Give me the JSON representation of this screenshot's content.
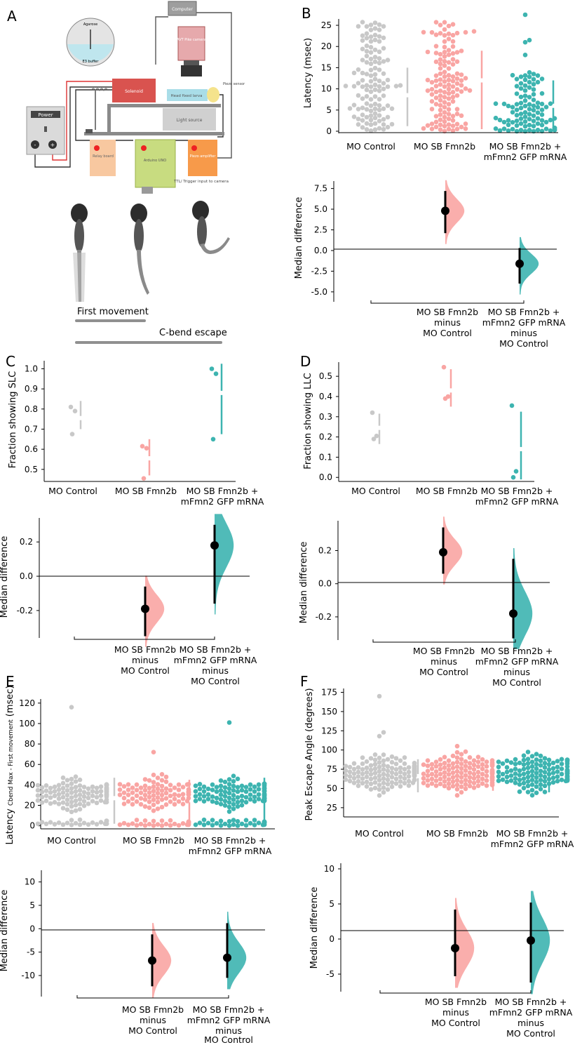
{
  "panels": {
    "A": {
      "letter": "A",
      "diagram": {
        "computer": "Computer",
        "camera": "AVT\nPike\ncamera",
        "agarose": "Agarose",
        "e3": "E3 buffer",
        "power": "Power",
        "minus": "-",
        "plus": "+",
        "solenoid": "Solenoid",
        "larva": "Head fixed larva",
        "piezo_sensor": "Piezo\nsensor",
        "light": "Light source",
        "relay": "Relay\nboard",
        "arduino": "Arduino\nUNO",
        "piezo_amp": "Piezo\namplifier",
        "ttl": "TTL/ Trigger input to camera"
      },
      "first_movement": "First movement",
      "cbend": "C-bend escape"
    },
    "B": "B",
    "C": "C",
    "D": "D",
    "E": "E",
    "F": "F"
  },
  "colors": {
    "control": "#c8c8c8",
    "fmn2b": "#f9a5a3",
    "rescue": "#3db4b0",
    "gray_bar": "#909090"
  },
  "groups": {
    "control": "MO Control",
    "fmn2b": "MO SB Fmn2b",
    "rescue_l1": "MO SB Fmn2b +",
    "rescue_l2": "mFmn2 GFP mRNA"
  },
  "diff_labels": {
    "fmn2b": [
      "MO SB Fmn2b",
      "minus",
      "MO Control"
    ],
    "rescue": [
      "MO SB Fmn2b +",
      "mFmn2 GFP mRNA",
      "minus",
      "MO Control"
    ]
  },
  "chart_data": [
    {
      "panel": "B",
      "type": "scatter",
      "ylabel": "Latency (msec)",
      "yticks": [
        0,
        5,
        10,
        15,
        20,
        25
      ],
      "ylim": [
        -0.5,
        26.5
      ],
      "groups": [
        "MO Control",
        "MO SB Fmn2b",
        "MO SB Fmn2b + mFmn2 GFP mRNA"
      ],
      "gap_bars": [
        [
          1.2,
          8.5,
          15
        ],
        [
          0.5,
          12,
          19
        ],
        [
          0.5,
          6,
          12
        ]
      ],
      "diff": {
        "ylabel": "Median difference",
        "yticks": [
          -5.0,
          -2.5,
          0.0,
          2.5,
          5.0,
          7.5
        ],
        "ylim": [
          -6.2,
          8.4
        ],
        "estimates": [
          {
            "label": "MO SB Fmn2b minus MO Control",
            "median": 4.8,
            "ci": [
              2.1,
              7.2
            ]
          },
          {
            "label": "MO SB Fmn2b + mFmn2 GFP mRNA minus MO Control",
            "median": -1.6,
            "ci": [
              -4.0,
              0.3
            ]
          }
        ]
      }
    },
    {
      "panel": "C",
      "type": "scatter",
      "ylabel": "Fraction showing SLC",
      "yticks": [
        0.5,
        0.6,
        0.7,
        0.8,
        0.9,
        1.0
      ],
      "ylim": [
        0.44,
        1.04
      ],
      "groups": [
        "MO Control",
        "MO SB Fmn2b",
        "MO SB Fmn2b + mFmn2 GFP mRNA"
      ],
      "points": [
        [
          0.81,
          0.79,
          0.675
        ],
        [
          0.615,
          0.605,
          0.455
        ],
        [
          1.0,
          0.975,
          0.65
        ]
      ],
      "gap_bars": [
        [
          0.7,
          0.755,
          0.84
        ],
        [
          0.47,
          0.555,
          0.65
        ],
        [
          0.675,
          0.88,
          1.025
        ]
      ],
      "diff": {
        "ylabel": "Median difference",
        "yticks": [
          -0.2,
          0.0,
          0.2
        ],
        "ylim": [
          -0.36,
          0.34
        ],
        "estimates": [
          {
            "label": "MO SB Fmn2b minus MO Control",
            "median": -0.19,
            "ci": [
              -0.35,
              -0.06
            ]
          },
          {
            "label": "MO SB Fmn2b + mFmn2 GFP mRNA minus MO Control",
            "median": 0.18,
            "ci": [
              -0.16,
              0.3
            ]
          }
        ]
      }
    },
    {
      "panel": "D",
      "type": "scatter",
      "ylabel": "Fraction showing LLC",
      "yticks": [
        0.0,
        0.1,
        0.2,
        0.3,
        0.4,
        0.5
      ],
      "ylim": [
        -0.02,
        0.57
      ],
      "groups": [
        "MO Control",
        "MO SB Fmn2b",
        "MO SB Fmn2b + mFmn2 GFP mRNA"
      ],
      "points": [
        [
          0.32,
          0.205,
          0.19
        ],
        [
          0.545,
          0.4,
          0.39
        ],
        [
          0.355,
          0.03,
          0.0
        ]
      ],
      "gap_bars": [
        [
          0.165,
          0.245,
          0.315
        ],
        [
          0.35,
          0.43,
          0.535
        ],
        [
          -0.01,
          0.14,
          0.325
        ]
      ],
      "diff": {
        "ylabel": "Median difference",
        "yticks": [
          -0.2,
          0.0,
          0.2
        ],
        "ylim": [
          -0.34,
          0.38
        ],
        "estimates": [
          {
            "label": "MO SB Fmn2b minus MO Control",
            "median": 0.19,
            "ci": [
              0.06,
              0.34
            ]
          },
          {
            "label": "MO SB Fmn2b + mFmn2 GFP mRNA minus MO Control",
            "median": -0.18,
            "ci": [
              -0.33,
              0.15
            ]
          }
        ]
      }
    },
    {
      "panel": "E",
      "type": "scatter",
      "ylabel": "Latency Cbend Max - First movement (msec)",
      "yticks": [
        0,
        20,
        40,
        60,
        80,
        100,
        120
      ],
      "ylim": [
        -3,
        124
      ],
      "groups": [
        "MO Control",
        "MO SB Fmn2b",
        "MO SB Fmn2b + mFmn2 GFP mRNA"
      ],
      "gap_bars": [
        [
          2,
          27,
          47
        ],
        [
          2,
          25,
          45
        ],
        [
          2,
          25,
          47
        ]
      ],
      "diff": {
        "ylabel": "Median difference",
        "yticks": [
          -10,
          -5,
          0,
          5,
          10
        ],
        "ylim": [
          -14.5,
          12.5
        ],
        "estimates": [
          {
            "label": "MO SB Fmn2b minus MO Control",
            "median": -6.8,
            "ci": [
              -12.3,
              -1.2
            ]
          },
          {
            "label": "MO SB Fmn2b + mFmn2 GFP mRNA minus MO Control",
            "median": -6.2,
            "ci": [
              -10.5,
              1.2
            ]
          }
        ]
      }
    },
    {
      "panel": "F",
      "type": "scatter",
      "ylabel": "Peak Escape Angle (degrees)",
      "yticks": [
        25,
        50,
        75,
        100,
        125,
        150,
        175
      ],
      "ylim": [
        13,
        180
      ],
      "groups": [
        "MO Control",
        "MO SB Fmn2b",
        "MO SB Fmn2b + mFmn2 GFP mRNA"
      ],
      "gap_bars": [
        [
          45,
          66,
          88
        ],
        [
          47,
          68,
          86
        ],
        [
          45,
          62,
          86
        ]
      ],
      "diff": {
        "ylabel": "Median difference",
        "yticks": [
          -5,
          0,
          5,
          10
        ],
        "ylim": [
          -7.5,
          10.8
        ],
        "estimates": [
          {
            "label": "MO SB Fmn2b minus MO Control",
            "median": -1.3,
            "ci": [
              -5.3,
              4.2
            ]
          },
          {
            "label": "MO SB Fmn2b + mFmn2 GFP mRNA minus MO Control",
            "median": -0.2,
            "ci": [
              -6.2,
              5.2
            ]
          }
        ]
      }
    }
  ]
}
